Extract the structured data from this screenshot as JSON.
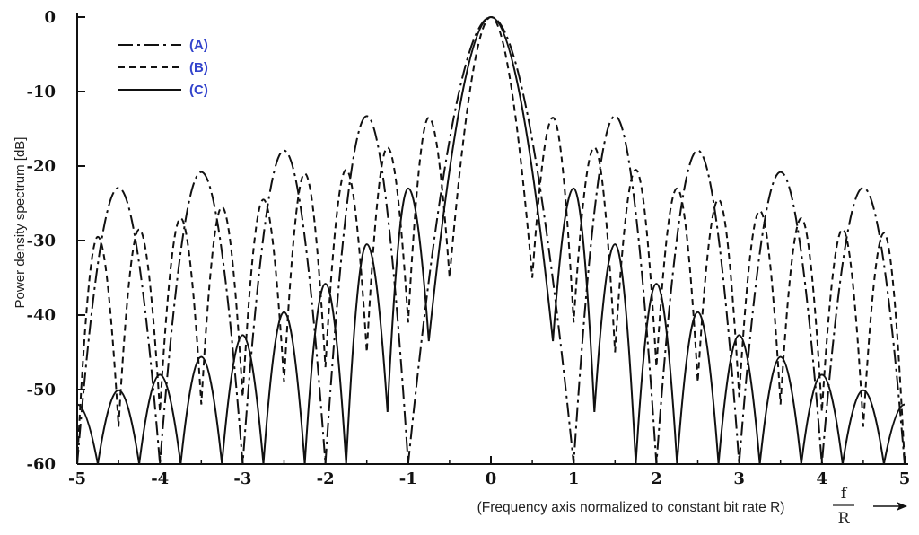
{
  "chart_data": {
    "type": "line",
    "xlim": [
      -5,
      5
    ],
    "ylim": [
      -60,
      0
    ],
    "x_ticks": [
      "-5",
      "-4",
      "-3",
      "-2",
      "-1",
      "0",
      "1",
      "2",
      "3",
      "4",
      "5"
    ],
    "y_ticks": [
      "0",
      "-10",
      "-20",
      "-30",
      "-40",
      "-50",
      "-60"
    ],
    "ylabel": "Power density spectrum [dB]",
    "xlabel": "(Frequency axis normalized to constant bit rate R)",
    "xlabel_fraction": {
      "numerator": "f",
      "denominator": "R"
    },
    "legend_position": "top-left",
    "grid": false,
    "series": [
      {
        "name": "(A)",
        "style": "dash-dot",
        "note": "main lobe null at |f/R| = 1, side lobes peak near ±1.5, ±2.5, ±3.5, ±4.5",
        "side_lobe_peaks_db": [
          -13.2,
          -17.7,
          -20.6,
          -22.8
        ],
        "curve": [
          [
            -5,
            -60
          ],
          [
            -4.5,
            -22.9
          ],
          [
            -4,
            -60
          ],
          [
            -3.5,
            -20.8
          ],
          [
            -3,
            -60
          ],
          [
            -2.5,
            -17.9
          ],
          [
            -2,
            -60
          ],
          [
            -1.5,
            -13.3
          ],
          [
            -1,
            -60
          ],
          [
            0,
            0
          ],
          [
            1,
            -60
          ],
          [
            1.5,
            -13.3
          ],
          [
            2,
            -60
          ],
          [
            2.5,
            -17.9
          ],
          [
            3,
            -60
          ],
          [
            3.5,
            -20.8
          ],
          [
            4,
            -60
          ],
          [
            4.5,
            -22.9
          ],
          [
            5,
            -60
          ]
        ]
      },
      {
        "name": "(B)",
        "style": "dashed",
        "note": "main lobe null at |f/R| = 0.5, side lobes between half-integer nulls",
        "curve": [
          [
            -5,
            -60
          ],
          [
            -4.75,
            -29.5
          ],
          [
            -4.5,
            -55
          ],
          [
            -4.25,
            -28.5
          ],
          [
            -4,
            -53
          ],
          [
            -3.75,
            -27
          ],
          [
            -3.5,
            -52
          ],
          [
            -3.25,
            -25.5
          ],
          [
            -3,
            -51
          ],
          [
            -2.75,
            -24.5
          ],
          [
            -2.5,
            -49
          ],
          [
            -2.25,
            -21
          ],
          [
            -2,
            -47
          ],
          [
            -1.75,
            -20.5
          ],
          [
            -1.5,
            -45
          ],
          [
            -1.25,
            -17.5
          ],
          [
            -1,
            -41
          ],
          [
            -0.75,
            -13.5
          ],
          [
            -0.5,
            -35
          ],
          [
            0,
            0
          ],
          [
            0.5,
            -35
          ],
          [
            0.75,
            -13.5
          ],
          [
            1,
            -41
          ],
          [
            1.25,
            -17.5
          ],
          [
            1.5,
            -45
          ],
          [
            1.75,
            -20.5
          ],
          [
            2,
            -47
          ],
          [
            2.25,
            -23
          ],
          [
            2.5,
            -49
          ],
          [
            2.75,
            -24.5
          ],
          [
            3,
            -51
          ],
          [
            3.25,
            -26
          ],
          [
            3.5,
            -52
          ],
          [
            3.75,
            -27
          ],
          [
            4,
            -53
          ],
          [
            4.25,
            -28.5
          ],
          [
            4.5,
            -55
          ],
          [
            4.75,
            -29
          ],
          [
            5,
            -60
          ]
        ]
      },
      {
        "name": "(C)",
        "style": "solid",
        "note": "main lobe null at |f/R| = 0.75, side lobes peak near integer f/R",
        "side_lobe_peaks_db": [
          -23,
          -30.5,
          -35.8,
          -39.6,
          -42.7,
          -45.6,
          -48,
          -50.1
        ],
        "curve": [
          [
            -5,
            -52
          ],
          [
            -4.75,
            -60
          ],
          [
            -4.5,
            -50.1
          ],
          [
            -4.25,
            -60
          ],
          [
            -4,
            -48
          ],
          [
            -3.75,
            -60
          ],
          [
            -3.5,
            -45.6
          ],
          [
            -3.25,
            -60
          ],
          [
            -3,
            -42.7
          ],
          [
            -2.75,
            -60
          ],
          [
            -2.5,
            -39.6
          ],
          [
            -2.25,
            -60
          ],
          [
            -2,
            -35.8
          ],
          [
            -1.75,
            -60
          ],
          [
            -1.5,
            -30.5
          ],
          [
            -1.25,
            -53
          ],
          [
            -1,
            -23
          ],
          [
            -0.75,
            -43.5
          ],
          [
            0,
            0
          ],
          [
            0.75,
            -43.5
          ],
          [
            1,
            -23
          ],
          [
            1.25,
            -53
          ],
          [
            1.5,
            -30.5
          ],
          [
            1.75,
            -60
          ],
          [
            2,
            -35.8
          ],
          [
            2.25,
            -60
          ],
          [
            2.5,
            -39.6
          ],
          [
            2.75,
            -60
          ],
          [
            3,
            -42.7
          ],
          [
            3.25,
            -60
          ],
          [
            3.5,
            -45.6
          ],
          [
            3.75,
            -60
          ],
          [
            4,
            -48
          ],
          [
            4.25,
            -60
          ],
          [
            4.5,
            -50.1
          ],
          [
            4.75,
            -60
          ],
          [
            5,
            -52
          ]
        ]
      }
    ]
  }
}
